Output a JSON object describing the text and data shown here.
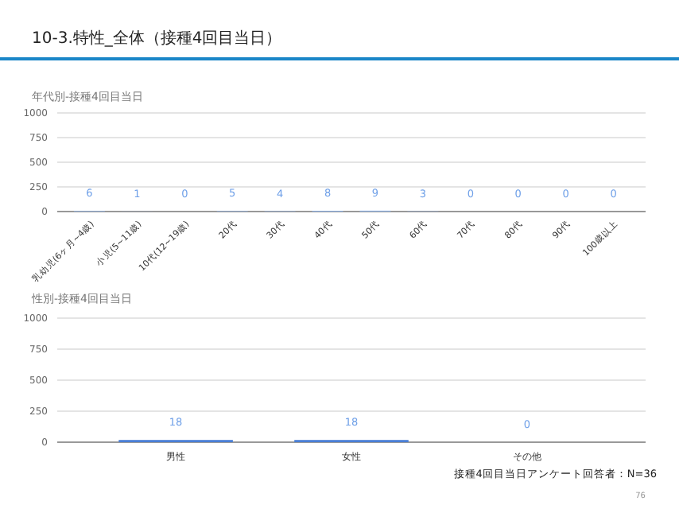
{
  "chart_data": [
    {
      "type": "bar",
      "title": "10-3.特性_全体（接種4回目当日）",
      "subtitle": "年代別-接種4回目当日",
      "categories": [
        "乳幼児(6ヶ月~4歳)",
        "小児(5~11歳)",
        "10代(12~19歳)",
        "20代",
        "30代",
        "40代",
        "50代",
        "60代",
        "70代",
        "80代",
        "90代",
        "100歳以上"
      ],
      "values": [
        6,
        1,
        0,
        5,
        4,
        8,
        9,
        3,
        0,
        0,
        0,
        0
      ],
      "color": "#8fb4ea",
      "ylim": [
        0,
        1000
      ],
      "yticks": [
        0,
        250,
        500,
        750,
        1000
      ],
      "grid": "y",
      "data_labels": true
    },
    {
      "type": "bar",
      "title": "性別-接種4回目当日",
      "categories": [
        "男性",
        "女性",
        "その他"
      ],
      "values": [
        18,
        18,
        0
      ],
      "color": "#4a7fd6",
      "ylim": [
        0,
        1000
      ],
      "yticks": [
        0,
        250,
        500,
        750,
        1000
      ],
      "grid": "y",
      "data_labels": true,
      "annotations": [
        "接種4回目当日アンケート回答者：N=36",
        "76"
      ]
    }
  ]
}
